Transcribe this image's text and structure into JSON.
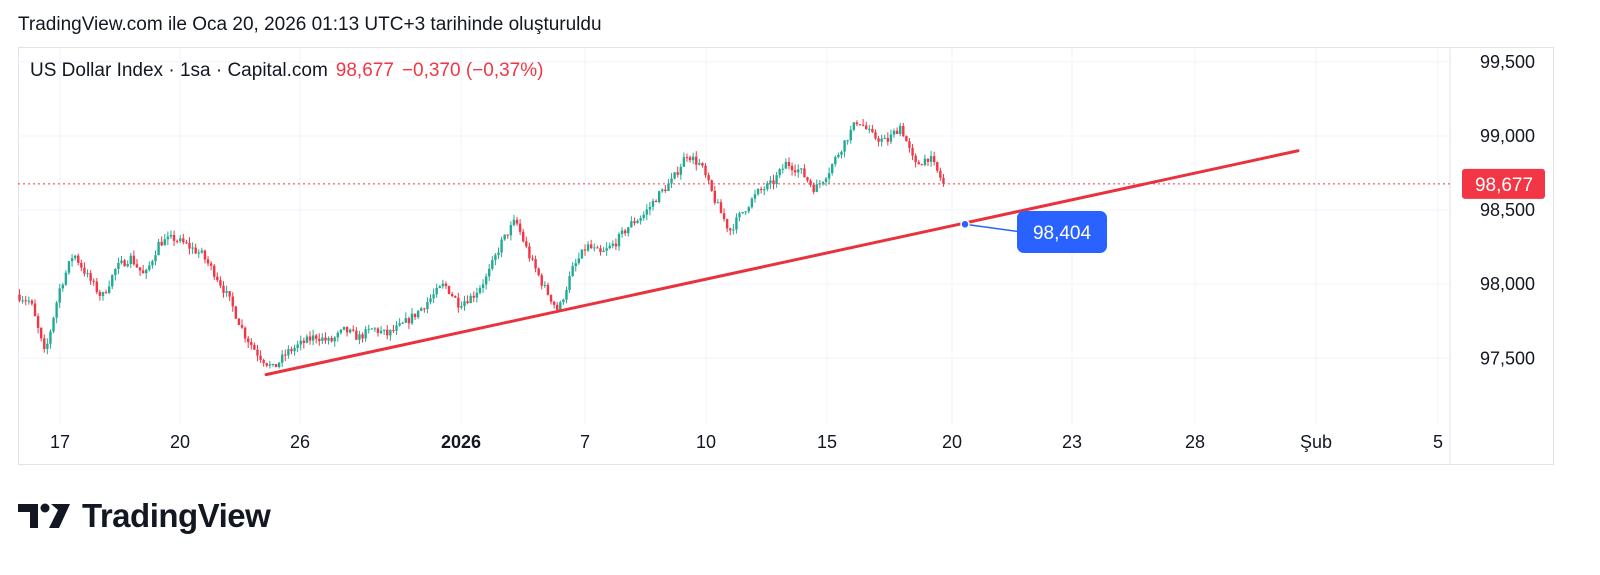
{
  "header": {
    "created_text": "TradingView.com ile Oca 20, 2026 01:13 UTC+3 tarihinde oluşturuldu"
  },
  "legend": {
    "symbol": "US Dollar Index · 1sa · Capital.com",
    "last": "98,677",
    "change": "−0,370 (−0,37%)"
  },
  "logo": {
    "wordmark": "TradingView",
    "icon": "tradingview-logo-icon"
  },
  "colors": {
    "up": "#22ab94",
    "down": "#f23645",
    "trendline": "#e8333f",
    "callout": "#2962ff",
    "grid": "#f0f3fa"
  },
  "chart_data": {
    "type": "candlestick",
    "title": "",
    "xlabel": "",
    "ylabel": "",
    "ylim": [
      97050,
      99600
    ],
    "y_ticks": [
      {
        "value": 99500,
        "label": "99,500"
      },
      {
        "value": 99000,
        "label": "99,000"
      },
      {
        "value": 98500,
        "label": "98,500"
      },
      {
        "value": 98000,
        "label": "98,000"
      },
      {
        "value": 97500,
        "label": "97,500"
      }
    ],
    "x_ticks": [
      {
        "label": "17",
        "bold": false
      },
      {
        "label": "20",
        "bold": false
      },
      {
        "label": "26",
        "bold": false
      },
      {
        "label": "2026",
        "bold": true
      },
      {
        "label": "7",
        "bold": false
      },
      {
        "label": "10",
        "bold": false
      },
      {
        "label": "15",
        "bold": false
      },
      {
        "label": "20",
        "bold": false
      },
      {
        "label": "23",
        "bold": false
      },
      {
        "label": "28",
        "bold": false
      },
      {
        "label": "Şub",
        "bold": false
      },
      {
        "label": "5",
        "bold": false
      }
    ],
    "price_path": [
      [
        "17 start",
        97930
      ],
      [
        "",
        97880
      ],
      [
        "17",
        97520
      ],
      [
        "",
        97960
      ],
      [
        "",
        98210
      ],
      [
        "",
        98050
      ],
      [
        "",
        97910
      ],
      [
        "",
        98110
      ],
      [
        "",
        98180
      ],
      [
        "",
        98050
      ],
      [
        "",
        98280
      ],
      [
        "20",
        98310
      ],
      [
        "",
        98260
      ],
      [
        "",
        98200
      ],
      [
        "",
        98060
      ],
      [
        "",
        97880
      ],
      [
        "",
        97660
      ],
      [
        "",
        97520
      ],
      [
        "",
        97430
      ],
      [
        "26",
        97540
      ],
      [
        "",
        97600
      ],
      [
        "",
        97650
      ],
      [
        "",
        97610
      ],
      [
        "",
        97690
      ],
      [
        "",
        97640
      ],
      [
        "",
        97700
      ],
      [
        "",
        97660
      ],
      [
        "",
        97720
      ],
      [
        "",
        97800
      ],
      [
        "",
        97900
      ],
      [
        "",
        98000
      ],
      [
        "",
        97870
      ],
      [
        "",
        97920
      ],
      [
        "2026",
        98050
      ],
      [
        "",
        98280
      ],
      [
        "",
        98430
      ],
      [
        "",
        98180
      ],
      [
        "",
        97980
      ],
      [
        "",
        97820
      ],
      [
        "",
        98100
      ],
      [
        "",
        98260
      ],
      [
        "7",
        98200
      ],
      [
        "",
        98280
      ],
      [
        "",
        98400
      ],
      [
        "",
        98470
      ],
      [
        "",
        98600
      ],
      [
        "",
        98700
      ],
      [
        "",
        98880
      ],
      [
        "",
        98800
      ],
      [
        "10",
        98560
      ],
      [
        "",
        98360
      ],
      [
        "",
        98500
      ],
      [
        "",
        98620
      ],
      [
        "",
        98680
      ],
      [
        "",
        98820
      ],
      [
        "",
        98760
      ],
      [
        "",
        98640
      ],
      [
        "15",
        98770
      ],
      [
        "",
        98950
      ],
      [
        "",
        99110
      ],
      [
        "",
        99000
      ],
      [
        "",
        98960
      ],
      [
        "",
        99070
      ],
      [
        "",
        98800
      ],
      [
        "",
        98860
      ],
      [
        "",
        98680
      ]
    ],
    "last_price": {
      "value": 98677,
      "label": "98,677"
    },
    "trendline": {
      "start": {
        "x_label": "Dec 24 (between 20 and 26)",
        "y": 97390
      },
      "end": {
        "x_label": "Jan 30 (between 28 and Şub)",
        "y": 98900
      }
    },
    "callout": {
      "value": 98404,
      "label": "98,404",
      "x_label": "20"
    }
  }
}
